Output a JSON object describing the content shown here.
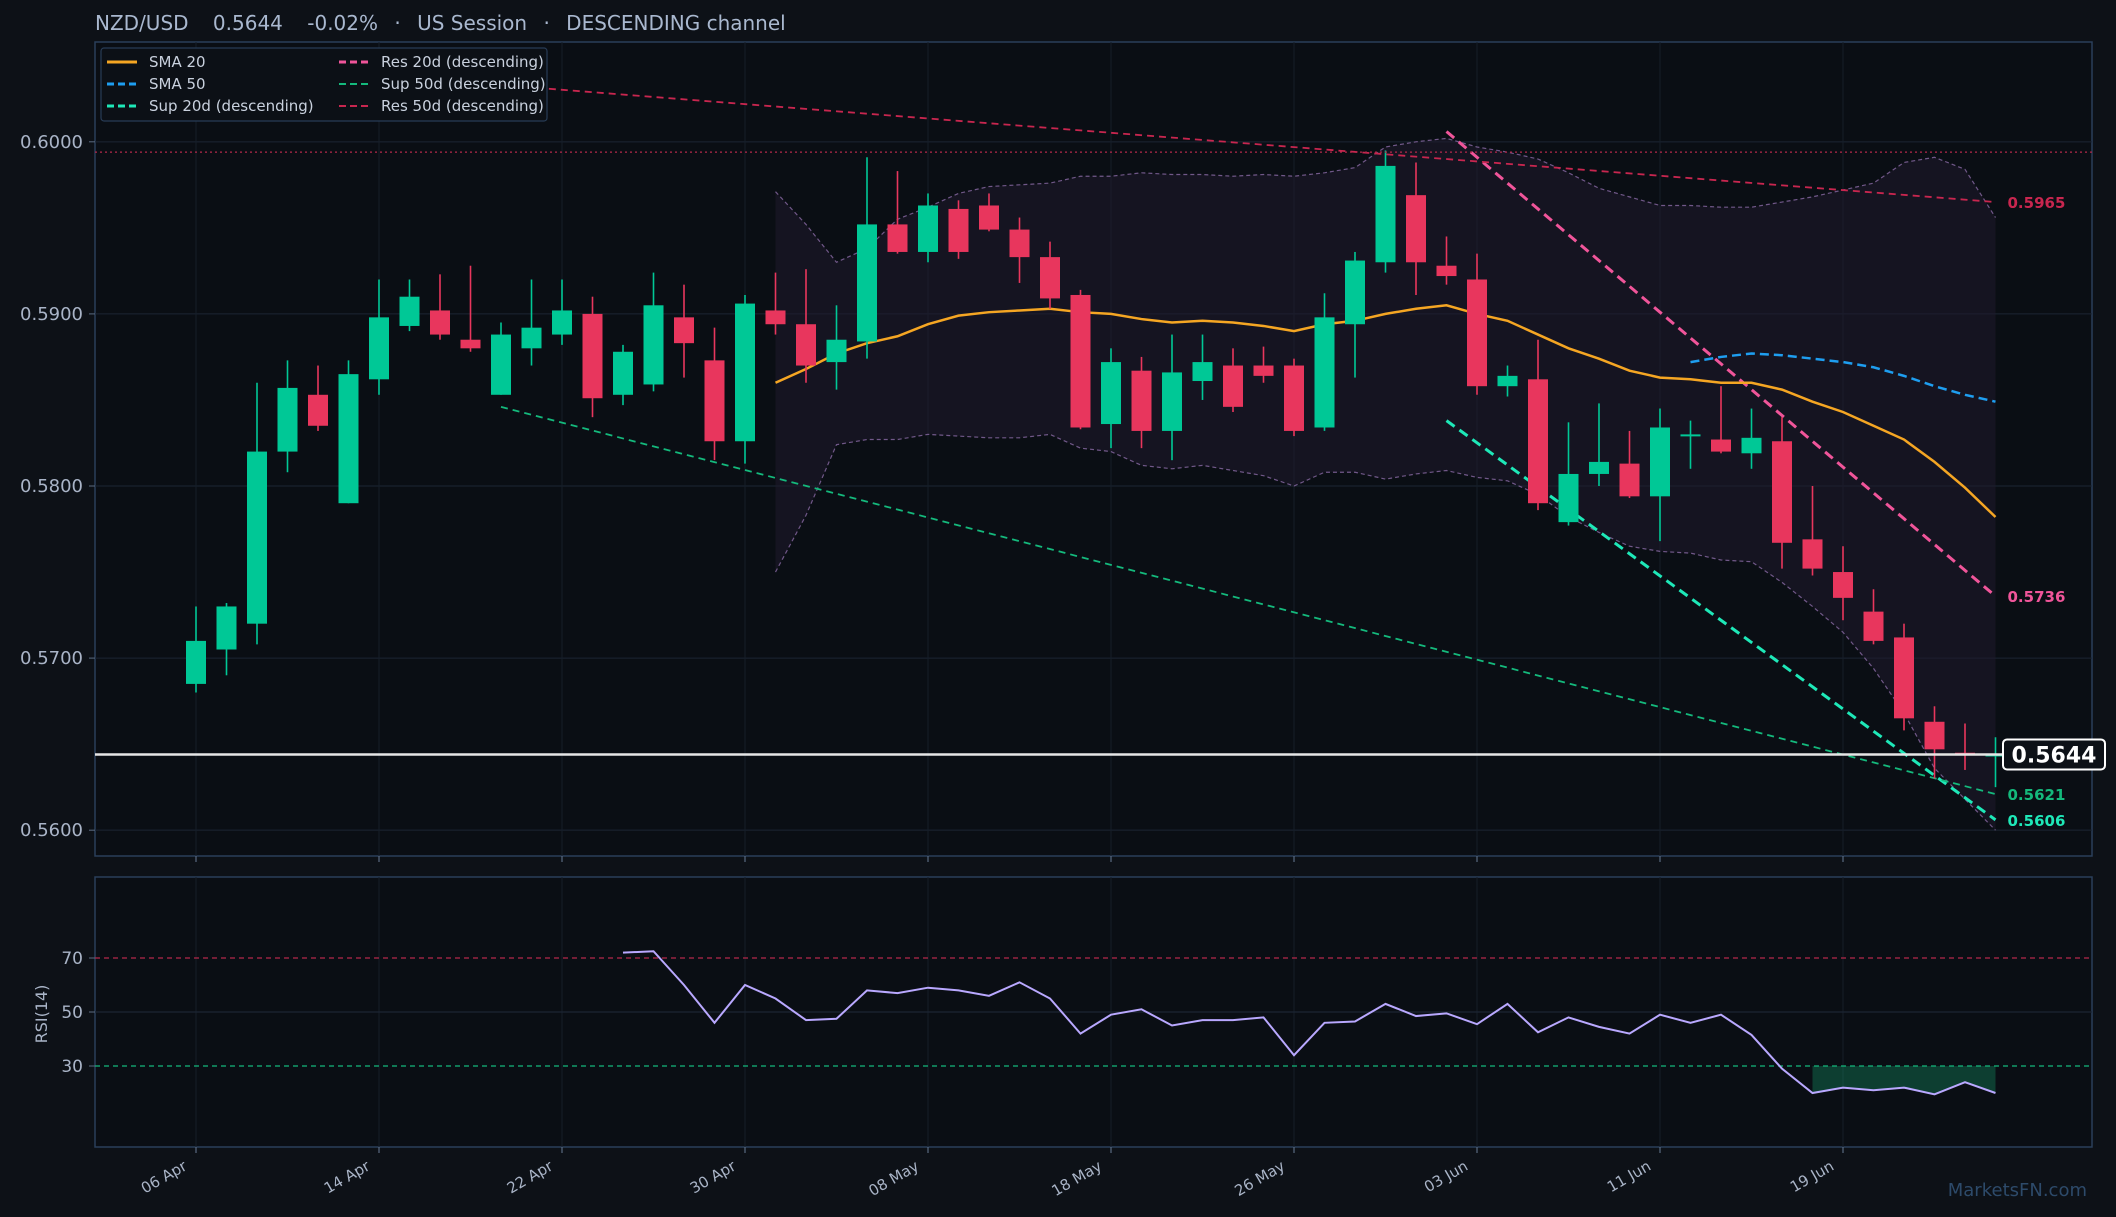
{
  "header": {
    "symbol": "NZD/USD",
    "price": "0.5644",
    "change": "-0.02%",
    "session": "US Session",
    "channel": "DESCENDING channel",
    "sep": "·"
  },
  "watermark": "MarketsFN.com",
  "colors": {
    "background": "#0d1117",
    "panel_border": "#2a3f5a",
    "up": "#00c896",
    "down": "#e8365d",
    "sma20": "#f5a623",
    "sma50": "#1e9ef0",
    "res20": "#f0559a",
    "sup20": "#1ee8b8",
    "res50": "#c8264f",
    "sup50": "#14b97c",
    "rsi": "#b9a8ff",
    "bollinger": "#8a6aa5",
    "current_price": "#e6e6e6"
  },
  "chart_data": [
    {
      "type": "candlestick",
      "title": "NZD/USD",
      "x_tick_labels": [
        "06 Apr",
        "14 Apr",
        "22 Apr",
        "30 Apr",
        "08 May",
        "18 May",
        "26 May",
        "03 Jun",
        "11 Jun",
        "19 Jun"
      ],
      "x_tick_index": [
        0,
        6,
        12,
        18,
        24,
        30,
        36,
        42,
        48,
        54
      ],
      "ylim": [
        0.5585,
        0.6058
      ],
      "y_ticks": [
        0.56,
        0.57,
        0.58,
        0.59,
        0.6
      ],
      "y_tick_labels": [
        "0.5600",
        "0.5700",
        "0.5800",
        "0.5900",
        "0.6000"
      ],
      "grid": true,
      "legend_position": "top-left",
      "candles": [
        {
          "o": 0.5685,
          "h": 0.573,
          "l": 0.568,
          "c": 0.571
        },
        {
          "o": 0.5705,
          "h": 0.5732,
          "l": 0.569,
          "c": 0.573
        },
        {
          "o": 0.572,
          "h": 0.586,
          "l": 0.5708,
          "c": 0.582
        },
        {
          "o": 0.582,
          "h": 0.5873,
          "l": 0.5808,
          "c": 0.5857
        },
        {
          "o": 0.5853,
          "h": 0.587,
          "l": 0.5832,
          "c": 0.5835
        },
        {
          "o": 0.579,
          "h": 0.5873,
          "l": 0.579,
          "c": 0.5865
        },
        {
          "o": 0.5862,
          "h": 0.592,
          "l": 0.5853,
          "c": 0.5898
        },
        {
          "o": 0.5893,
          "h": 0.592,
          "l": 0.589,
          "c": 0.591
        },
        {
          "o": 0.5902,
          "h": 0.5923,
          "l": 0.5885,
          "c": 0.5888
        },
        {
          "o": 0.5885,
          "h": 0.5928,
          "l": 0.5878,
          "c": 0.588
        },
        {
          "o": 0.5853,
          "h": 0.5895,
          "l": 0.5853,
          "c": 0.5888
        },
        {
          "o": 0.588,
          "h": 0.592,
          "l": 0.587,
          "c": 0.5892
        },
        {
          "o": 0.5888,
          "h": 0.592,
          "l": 0.5882,
          "c": 0.5902
        },
        {
          "o": 0.59,
          "h": 0.591,
          "l": 0.584,
          "c": 0.5851
        },
        {
          "o": 0.5853,
          "h": 0.5882,
          "l": 0.5847,
          "c": 0.5878
        },
        {
          "o": 0.5859,
          "h": 0.5924,
          "l": 0.5855,
          "c": 0.5905
        },
        {
          "o": 0.5898,
          "h": 0.5917,
          "l": 0.5863,
          "c": 0.5883
        },
        {
          "o": 0.5873,
          "h": 0.5892,
          "l": 0.5815,
          "c": 0.5826
        },
        {
          "o": 0.5826,
          "h": 0.5911,
          "l": 0.5813,
          "c": 0.5906
        },
        {
          "o": 0.5902,
          "h": 0.5924,
          "l": 0.5888,
          "c": 0.5894
        },
        {
          "o": 0.5894,
          "h": 0.5926,
          "l": 0.586,
          "c": 0.587
        },
        {
          "o": 0.5872,
          "h": 0.5905,
          "l": 0.5856,
          "c": 0.5885
        },
        {
          "o": 0.5884,
          "h": 0.5991,
          "l": 0.5874,
          "c": 0.5952
        },
        {
          "o": 0.5952,
          "h": 0.5983,
          "l": 0.5935,
          "c": 0.5936
        },
        {
          "o": 0.5936,
          "h": 0.597,
          "l": 0.593,
          "c": 0.5963
        },
        {
          "o": 0.5961,
          "h": 0.5966,
          "l": 0.5932,
          "c": 0.5936
        },
        {
          "o": 0.5963,
          "h": 0.597,
          "l": 0.5948,
          "c": 0.5949
        },
        {
          "o": 0.5949,
          "h": 0.5956,
          "l": 0.5918,
          "c": 0.5933
        },
        {
          "o": 0.5933,
          "h": 0.5942,
          "l": 0.5903,
          "c": 0.5909
        },
        {
          "o": 0.5911,
          "h": 0.5914,
          "l": 0.5833,
          "c": 0.5834
        },
        {
          "o": 0.5836,
          "h": 0.588,
          "l": 0.5822,
          "c": 0.5872
        },
        {
          "o": 0.5867,
          "h": 0.5875,
          "l": 0.5822,
          "c": 0.5832
        },
        {
          "o": 0.5832,
          "h": 0.5888,
          "l": 0.5815,
          "c": 0.5866
        },
        {
          "o": 0.5861,
          "h": 0.5888,
          "l": 0.585,
          "c": 0.5872
        },
        {
          "o": 0.587,
          "h": 0.588,
          "l": 0.5843,
          "c": 0.5846
        },
        {
          "o": 0.587,
          "h": 0.5881,
          "l": 0.586,
          "c": 0.5864
        },
        {
          "o": 0.587,
          "h": 0.5874,
          "l": 0.5829,
          "c": 0.5832
        },
        {
          "o": 0.5834,
          "h": 0.5912,
          "l": 0.5832,
          "c": 0.5898
        },
        {
          "o": 0.5894,
          "h": 0.5936,
          "l": 0.5863,
          "c": 0.5931
        },
        {
          "o": 0.593,
          "h": 0.5995,
          "l": 0.5924,
          "c": 0.5986
        },
        {
          "o": 0.5969,
          "h": 0.5988,
          "l": 0.5911,
          "c": 0.593
        },
        {
          "o": 0.5928,
          "h": 0.5945,
          "l": 0.5917,
          "c": 0.5922
        },
        {
          "o": 0.592,
          "h": 0.5935,
          "l": 0.5853,
          "c": 0.5858
        },
        {
          "o": 0.5858,
          "h": 0.587,
          "l": 0.5852,
          "c": 0.5864
        },
        {
          "o": 0.5862,
          "h": 0.5885,
          "l": 0.5786,
          "c": 0.579
        },
        {
          "o": 0.5779,
          "h": 0.5837,
          "l": 0.5777,
          "c": 0.5807
        },
        {
          "o": 0.5807,
          "h": 0.5848,
          "l": 0.58,
          "c": 0.5814
        },
        {
          "o": 0.5813,
          "h": 0.5832,
          "l": 0.5793,
          "c": 0.5794
        },
        {
          "o": 0.5794,
          "h": 0.5845,
          "l": 0.5768,
          "c": 0.5834
        },
        {
          "o": 0.583,
          "h": 0.5838,
          "l": 0.581,
          "c": 0.583
        },
        {
          "o": 0.5827,
          "h": 0.5858,
          "l": 0.5819,
          "c": 0.582
        },
        {
          "o": 0.5819,
          "h": 0.5845,
          "l": 0.581,
          "c": 0.5828
        },
        {
          "o": 0.5826,
          "h": 0.584,
          "l": 0.5752,
          "c": 0.5767
        },
        {
          "o": 0.5769,
          "h": 0.58,
          "l": 0.5748,
          "c": 0.5752
        },
        {
          "o": 0.575,
          "h": 0.5765,
          "l": 0.5722,
          "c": 0.5735
        },
        {
          "o": 0.5727,
          "h": 0.574,
          "l": 0.5708,
          "c": 0.571
        },
        {
          "o": 0.5712,
          "h": 0.572,
          "l": 0.5658,
          "c": 0.5665
        },
        {
          "o": 0.5663,
          "h": 0.5672,
          "l": 0.563,
          "c": 0.5647
        },
        {
          "o": 0.5645,
          "h": 0.5662,
          "l": 0.5635,
          "c": 0.5644
        },
        {
          "o": 0.5644,
          "h": 0.5654,
          "l": 0.5625,
          "c": 0.5644
        }
      ],
      "sma20_start": 19,
      "sma20": [
        0.586,
        0.5868,
        0.5877,
        0.5883,
        0.5887,
        0.5894,
        0.5899,
        0.5901,
        0.5902,
        0.5903,
        0.5901,
        0.59,
        0.5897,
        0.5895,
        0.5896,
        0.5895,
        0.5893,
        0.589,
        0.5894,
        0.5896,
        0.59,
        0.5903,
        0.5905,
        0.59,
        0.5896,
        0.5888,
        0.588,
        0.5874,
        0.5867,
        0.5863,
        0.5862,
        0.586,
        0.586,
        0.5856,
        0.5849,
        0.5843,
        0.5835,
        0.5827,
        0.5814,
        0.5799,
        0.5782
      ],
      "sma50_start": 49,
      "sma50": [
        0.5872,
        0.5875,
        0.5877,
        0.5876,
        0.5874,
        0.5872,
        0.5869,
        0.5864,
        0.5858,
        0.5853,
        0.5849
      ],
      "bollinger_start": 19,
      "bollinger_upper": [
        0.5971,
        0.5952,
        0.593,
        0.5938,
        0.5955,
        0.5962,
        0.597,
        0.5974,
        0.5975,
        0.5976,
        0.598,
        0.598,
        0.5982,
        0.5981,
        0.5981,
        0.598,
        0.5981,
        0.598,
        0.5982,
        0.5985,
        0.5997,
        0.6,
        0.6002,
        0.5997,
        0.5994,
        0.599,
        0.5982,
        0.5973,
        0.5968,
        0.5963,
        0.5963,
        0.5962,
        0.5962,
        0.5965,
        0.5968,
        0.5972,
        0.5976,
        0.5988,
        0.5991,
        0.5984,
        0.5956
      ],
      "bollinger_lower": [
        0.575,
        0.5783,
        0.5824,
        0.5827,
        0.5827,
        0.583,
        0.5829,
        0.5828,
        0.5828,
        0.583,
        0.5822,
        0.582,
        0.5812,
        0.581,
        0.5812,
        0.5809,
        0.5806,
        0.58,
        0.5808,
        0.5808,
        0.5804,
        0.5807,
        0.5809,
        0.5805,
        0.5803,
        0.5795,
        0.5782,
        0.5773,
        0.5765,
        0.5762,
        0.5761,
        0.5757,
        0.5756,
        0.5744,
        0.573,
        0.5715,
        0.5694,
        0.5668,
        0.5636,
        0.5618,
        0.56
      ],
      "current_price": 0.5644,
      "current_price_label": "0.5644",
      "prior_high": 0.5994,
      "trendlines": [
        {
          "name": "Res 20d (descending)",
          "from": [
            41,
            0.6006
          ],
          "to": [
            59,
            0.5736
          ],
          "label": "0.5736",
          "key": "res20"
        },
        {
          "name": "Sup 20d (descending)",
          "from": [
            41,
            0.5838
          ],
          "to": [
            59,
            0.5606
          ],
          "label": "0.5606",
          "key": "sup20"
        },
        {
          "name": "Res 50d (descending)",
          "from": [
            10,
            0.6033
          ],
          "to": [
            59,
            0.5965
          ],
          "label": "0.5965",
          "key": "res50"
        },
        {
          "name": "Sup 50d (descending)",
          "from": [
            10,
            0.5846
          ],
          "to": [
            59,
            0.5621
          ],
          "label": "0.5621",
          "key": "sup50"
        }
      ],
      "legend": [
        {
          "label": "SMA 20",
          "key": "sma20",
          "dash": "solid"
        },
        {
          "label": "SMA 50",
          "key": "sma50",
          "dash": "dash"
        },
        {
          "label": "Sup 20d (descending)",
          "key": "sup20",
          "dash": "dash"
        },
        {
          "label": "Res 20d (descending)",
          "key": "res20",
          "dash": "dash"
        },
        {
          "label": "Sup 50d (descending)",
          "key": "sup50",
          "dash": "dash"
        },
        {
          "label": "Res 50d (descending)",
          "key": "res50",
          "dash": "dash"
        }
      ]
    },
    {
      "type": "line",
      "ylabel": "RSI(14)",
      "ylim": [
        0,
        100
      ],
      "y_ticks": [
        30,
        50,
        70
      ],
      "y_tick_labels": [
        "30",
        "50",
        "70"
      ],
      "overbought": 70,
      "oversold": 30,
      "rsi_start": 14,
      "rsi": [
        72,
        72.5,
        60,
        46,
        60,
        55,
        47,
        47.5,
        58,
        57,
        59,
        58,
        56,
        61,
        55,
        42,
        49,
        51,
        45,
        47,
        47,
        48,
        34,
        46,
        46.5,
        53,
        48.5,
        49.5,
        45.5,
        53,
        42.5,
        48,
        44.5,
        42,
        49,
        46,
        49,
        41.5,
        29,
        20,
        22,
        21,
        22,
        19.5,
        24,
        20
      ],
      "oversold_shade_from": 53
    }
  ]
}
